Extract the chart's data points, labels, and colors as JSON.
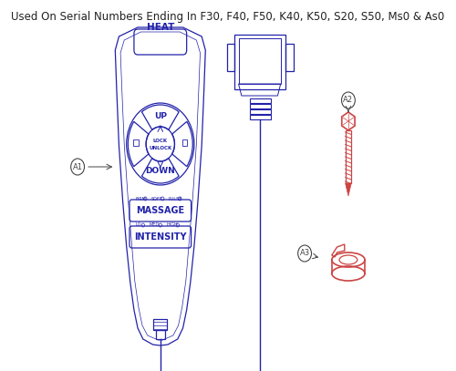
{
  "title": "Used On Serial Numbers Ending In F30, F40, F50, K40, K50, S20, S50, Ms0 & As0",
  "title_fontsize": 8.5,
  "title_color": "#222222",
  "bg_color": "#ffffff",
  "remote_color": "#2222aa",
  "connector_color": "#2222aa",
  "part_color": "#cc4444",
  "label_circle_color": "#444444",
  "label_A1": "A1",
  "label_A2": "A2",
  "label_A3": "A3"
}
